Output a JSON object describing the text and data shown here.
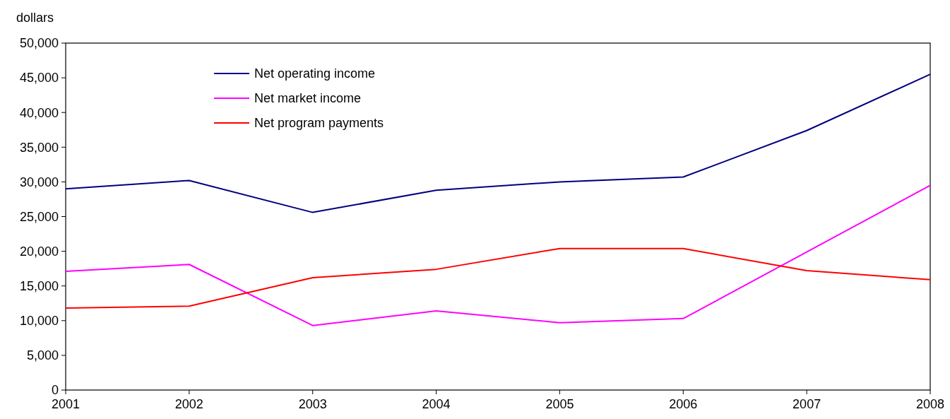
{
  "chart_data": {
    "type": "line",
    "ylabel": "dollars",
    "x": [
      2001,
      2002,
      2003,
      2004,
      2005,
      2006,
      2007,
      2008
    ],
    "xlim": [
      2001,
      2008
    ],
    "xticks": [
      2001,
      2002,
      2003,
      2004,
      2005,
      2006,
      2007,
      2008
    ],
    "ylim": [
      0,
      50000
    ],
    "yticks": [
      {
        "value": 0,
        "label": "0"
      },
      {
        "value": 5000,
        "label": "5,000"
      },
      {
        "value": 10000,
        "label": "10,000"
      },
      {
        "value": 15000,
        "label": "15,000"
      },
      {
        "value": 20000,
        "label": "20,000"
      },
      {
        "value": 25000,
        "label": "25,000"
      },
      {
        "value": 30000,
        "label": "30,000"
      },
      {
        "value": 35000,
        "label": "35,000"
      },
      {
        "value": 40000,
        "label": "40,000"
      },
      {
        "value": 45000,
        "label": "45,000"
      },
      {
        "value": 50000,
        "label": "50,000"
      }
    ],
    "grid": false,
    "legend": "top left",
    "marker": "none",
    "line_style": "solid",
    "series": [
      {
        "name": "Net operating income",
        "color": "#000080",
        "values": [
          29000,
          30200,
          25600,
          28800,
          30000,
          30700,
          37400,
          45500
        ]
      },
      {
        "name": "Net market income",
        "color": "#ff00ff",
        "values": [
          17100,
          18100,
          9300,
          11400,
          9700,
          10300,
          19900,
          29500
        ]
      },
      {
        "name": "Net program payments",
        "color": "#ff0000",
        "values": [
          11800,
          12100,
          16200,
          17400,
          20400,
          20400,
          17200,
          15900
        ]
      }
    ]
  }
}
